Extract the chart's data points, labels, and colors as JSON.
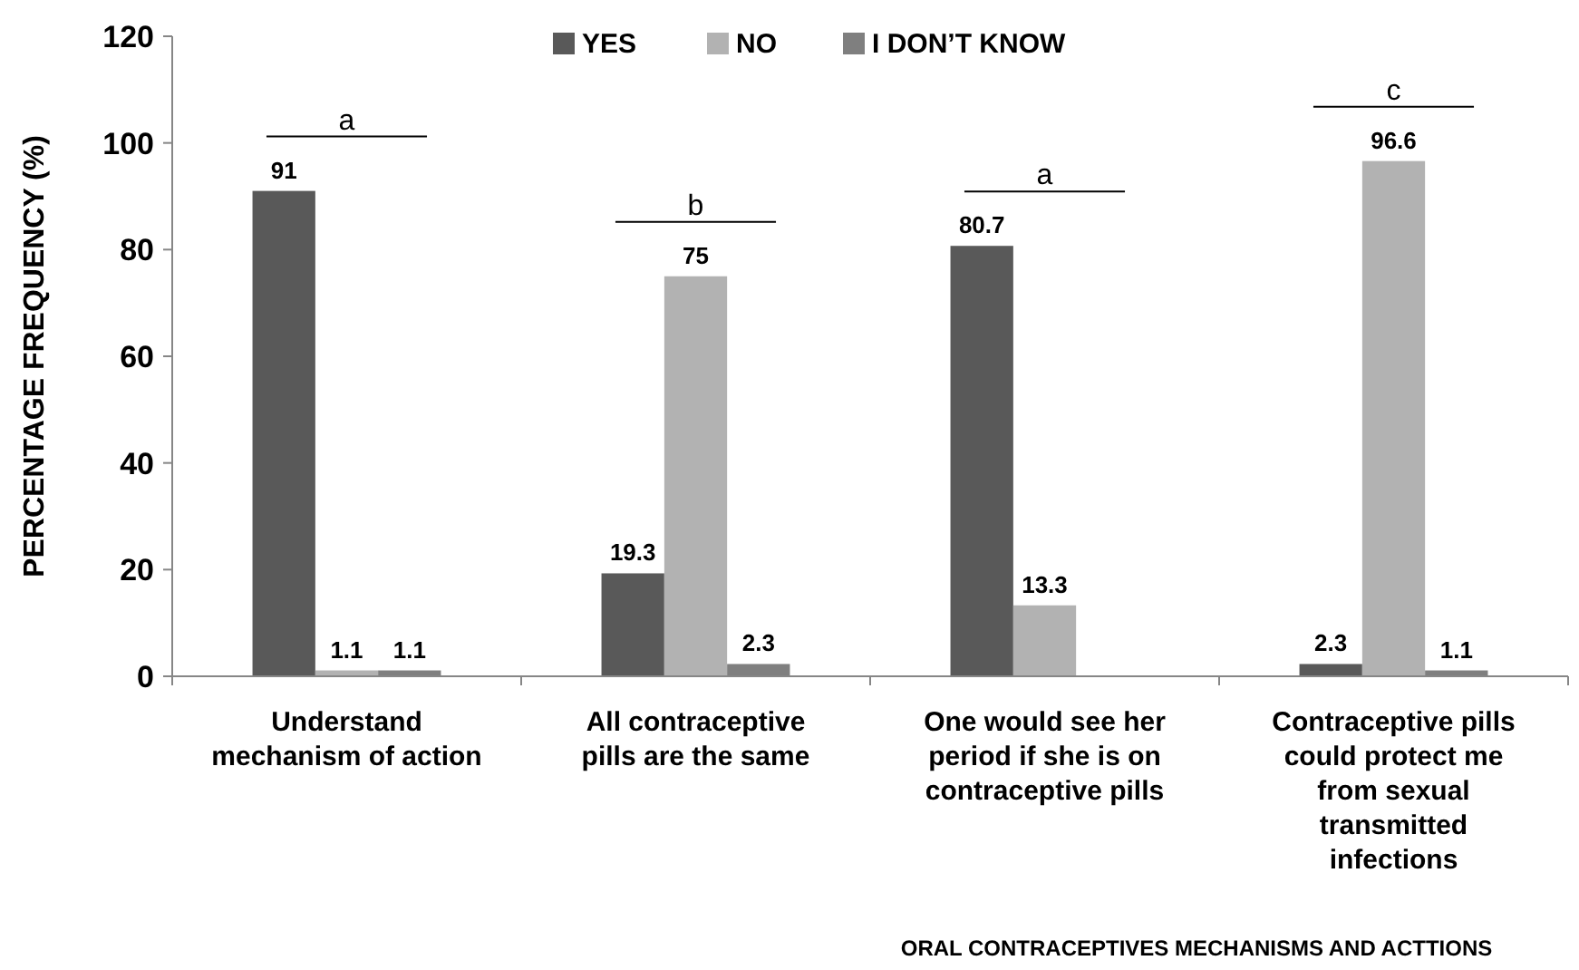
{
  "chart_data": {
    "type": "bar",
    "categories": [
      "Understand mechanism of action",
      "All contraceptive pills are the same",
      "One would see her period if she is on contraceptive pills",
      "Contraceptive pills could protect me from sexual transmitted infections"
    ],
    "series": [
      {
        "name": "YES",
        "color": "#595959",
        "values": [
          91,
          19.3,
          80.7,
          2.3
        ]
      },
      {
        "name": "NO",
        "color": "#b2b2b2",
        "values": [
          1.1,
          75,
          13.3,
          96.6
        ]
      },
      {
        "name": "I DON’T KNOW",
        "color": "#7f7f7f",
        "values": [
          1.1,
          2.3,
          null,
          1.1
        ]
      }
    ],
    "xlabel": "ORAL CONTRACEPTIVES MECHANISMS AND ACTTIONS",
    "ylabel": "PERCENTAGE FREQUENCY (%)",
    "ylim": [
      0,
      120
    ],
    "yticks": [
      0,
      20,
      40,
      60,
      80,
      100,
      120
    ],
    "grid": false,
    "legend": "top",
    "data_labels": true,
    "annotations": [
      "a",
      "b",
      "a",
      "c"
    ]
  }
}
